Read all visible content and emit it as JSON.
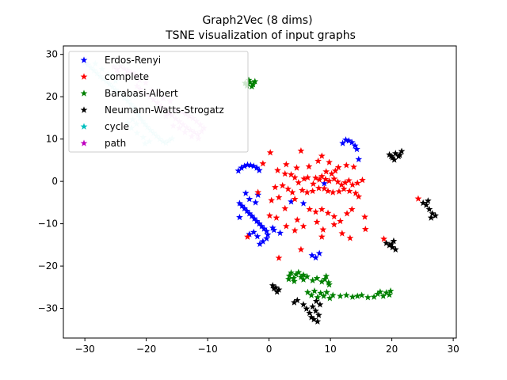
{
  "chart_data": {
    "type": "scatter",
    "title": "Graph2Vec (8 dims)",
    "subtitle": "TSNE visualization of input graphs",
    "xlabel": "",
    "ylabel": "",
    "xlim": [
      -33.5,
      30.5
    ],
    "ylim": [
      -37,
      32
    ],
    "xticks": [
      -30,
      -20,
      -10,
      0,
      10,
      20,
      30
    ],
    "yticks": [
      -30,
      -20,
      -10,
      0,
      10,
      20,
      30
    ],
    "grid": false,
    "legend_position": "upper-left",
    "marker": "star",
    "series": [
      {
        "name": "Erdos-Renyi",
        "color": "#0000ff",
        "points": [
          [
            -5,
            2.5
          ],
          [
            -4.5,
            3.2
          ],
          [
            -4,
            3.6
          ],
          [
            -3.5,
            3.9
          ],
          [
            -3,
            3.8
          ],
          [
            -2.5,
            3.6
          ],
          [
            -2,
            3.2
          ],
          [
            -1.6,
            2.6
          ],
          [
            -4.8,
            -5.2
          ],
          [
            -4.4,
            -5.8
          ],
          [
            -4,
            -6.4
          ],
          [
            -3.6,
            -7
          ],
          [
            -3.2,
            -7.6
          ],
          [
            -2.8,
            -8.2
          ],
          [
            -2.4,
            -8.8
          ],
          [
            -2,
            -9.4
          ],
          [
            -1.6,
            -10
          ],
          [
            -1.2,
            -10.6
          ],
          [
            -0.8,
            -11.2
          ],
          [
            -0.4,
            -11.8
          ],
          [
            -0.2,
            -12.6
          ],
          [
            -0.4,
            -13.5
          ],
          [
            -1,
            -14.2
          ],
          [
            -1.5,
            -14.8
          ],
          [
            -1.9,
            -13
          ],
          [
            -2.5,
            -12
          ],
          [
            -3.2,
            -12.5
          ],
          [
            -4.8,
            -8.5
          ],
          [
            0.6,
            -11
          ],
          [
            0.8,
            -11.5
          ],
          [
            1.8,
            -12.2
          ],
          [
            -3.8,
            -2.8
          ],
          [
            -3.2,
            -4.2
          ],
          [
            -2.2,
            -5
          ],
          [
            -1.8,
            -3.2
          ],
          [
            3.6,
            -4.8
          ],
          [
            5.6,
            -5.2
          ],
          [
            9,
            -0.5
          ],
          [
            7,
            -17.5
          ],
          [
            7.6,
            -18
          ],
          [
            8.2,
            -17
          ],
          [
            12,
            9
          ],
          [
            12.5,
            9.8
          ],
          [
            13,
            9.6
          ],
          [
            13.5,
            9.2
          ],
          [
            14,
            8.4
          ],
          [
            14.3,
            7.6
          ],
          [
            14.6,
            5.2
          ]
        ]
      },
      {
        "name": "complete",
        "color": "#ff0000",
        "points": [
          [
            0.2,
            6.8
          ],
          [
            5.2,
            7.2
          ],
          [
            -1,
            4.2
          ],
          [
            2.8,
            4
          ],
          [
            4.5,
            3.2
          ],
          [
            6.5,
            3.5
          ],
          [
            8,
            4.8
          ],
          [
            9.3,
            2.3
          ],
          [
            10.2,
            1.8
          ],
          [
            10.8,
            2.5
          ],
          [
            11.3,
            3.3
          ],
          [
            12.6,
            3.8
          ],
          [
            13.8,
            3.4
          ],
          [
            8.6,
            6
          ],
          [
            9.8,
            4.5
          ],
          [
            1.4,
            2.6
          ],
          [
            2.6,
            1.8
          ],
          [
            3.6,
            1.6
          ],
          [
            4.2,
            0.9
          ],
          [
            4.8,
            -0.3
          ],
          [
            5.7,
            0.6
          ],
          [
            6.3,
            0.9
          ],
          [
            7.2,
            -0.6
          ],
          [
            7.6,
            0.8
          ],
          [
            8.2,
            0.4
          ],
          [
            8.6,
            1.2
          ],
          [
            9.2,
            0.5
          ],
          [
            9.8,
            0.1
          ],
          [
            10.6,
            0.6
          ],
          [
            11.2,
            -0.1
          ],
          [
            11.8,
            -0.8
          ],
          [
            12.4,
            -0.3
          ],
          [
            13,
            0.2
          ],
          [
            13.6,
            -0.8
          ],
          [
            14.4,
            -0.4
          ],
          [
            15.2,
            0.3
          ],
          [
            -1.8,
            -2.6
          ],
          [
            1,
            -1.4
          ],
          [
            2.2,
            -1
          ],
          [
            3.1,
            -1.8
          ],
          [
            3.8,
            -2.6
          ],
          [
            5.4,
            -2.1
          ],
          [
            6.2,
            -2.6
          ],
          [
            7.1,
            -2.3
          ],
          [
            8.1,
            -1.6
          ],
          [
            9,
            -1.7
          ],
          [
            9.6,
            -2.3
          ],
          [
            10.4,
            -2.6
          ],
          [
            11.4,
            -2.4
          ],
          [
            12.2,
            -1.8
          ],
          [
            13.1,
            -2.3
          ],
          [
            14.1,
            -2.8
          ],
          [
            0.4,
            -4.5
          ],
          [
            1.6,
            -3.8
          ],
          [
            2.6,
            -6.4
          ],
          [
            4.2,
            -4.2
          ],
          [
            6.6,
            -6.6
          ],
          [
            7.6,
            -7.2
          ],
          [
            8.6,
            -6.6
          ],
          [
            9.6,
            -7.5
          ],
          [
            10.6,
            -8.3
          ],
          [
            11.6,
            -9.4
          ],
          [
            12.7,
            -7.6
          ],
          [
            13.5,
            -6.6
          ],
          [
            14.6,
            -3.6
          ],
          [
            15.6,
            -8.4
          ],
          [
            0.1,
            -8.1
          ],
          [
            1.2,
            -8.6
          ],
          [
            4.6,
            -9.1
          ],
          [
            5.6,
            -10.6
          ],
          [
            7.8,
            -9.6
          ],
          [
            8.8,
            -11.4
          ],
          [
            10.6,
            -10.2
          ],
          [
            11.9,
            -12.3
          ],
          [
            13.2,
            -13.4
          ],
          [
            2.8,
            -10.6
          ],
          [
            4.2,
            -11.6
          ],
          [
            8.6,
            -13.1
          ],
          [
            15.7,
            -11.3
          ],
          [
            -3.5,
            -13.1
          ],
          [
            1.6,
            -18.1
          ],
          [
            5.2,
            -16.1
          ],
          [
            24.3,
            -4.1
          ],
          [
            18.7,
            -13.6
          ]
        ]
      },
      {
        "name": "Barabasi-Albert",
        "color": "#008000",
        "points": [
          [
            -3.9,
            23.2
          ],
          [
            -3.6,
            22.6
          ],
          [
            -3.1,
            23.4
          ],
          [
            -2.6,
            22.9
          ],
          [
            -3.3,
            23.9
          ],
          [
            -2.8,
            22.4
          ],
          [
            -2.3,
            23.6
          ],
          [
            3.3,
            -22.3
          ],
          [
            3.6,
            -21.6
          ],
          [
            4,
            -22.9
          ],
          [
            4.4,
            -22
          ],
          [
            4.8,
            -21.5
          ],
          [
            5.2,
            -22.6
          ],
          [
            5.6,
            -22.1
          ],
          [
            3.2,
            -23.1
          ],
          [
            4.1,
            -23.6
          ],
          [
            5.6,
            -23.2
          ],
          [
            6.2,
            -22.5
          ],
          [
            7.1,
            -23.4
          ],
          [
            7.8,
            -22.9
          ],
          [
            8.6,
            -23.7
          ],
          [
            9.1,
            -23.1
          ],
          [
            9.7,
            -23.9
          ],
          [
            9.3,
            -22.4
          ],
          [
            9.8,
            -24.4
          ],
          [
            6.3,
            -26.2
          ],
          [
            6.9,
            -26.9
          ],
          [
            7.4,
            -25.9
          ],
          [
            7.9,
            -27.4
          ],
          [
            8.4,
            -26.4
          ],
          [
            8.9,
            -27.1
          ],
          [
            9.4,
            -26.2
          ],
          [
            9.9,
            -27.6
          ],
          [
            10.4,
            -26.9
          ],
          [
            11.6,
            -27.1
          ],
          [
            12.6,
            -26.9
          ],
          [
            13.6,
            -27.3
          ],
          [
            14.4,
            -27.1
          ],
          [
            15.1,
            -26.9
          ],
          [
            16.1,
            -27.4
          ],
          [
            17.1,
            -27.3
          ],
          [
            17.7,
            -26.6
          ],
          [
            18.1,
            -26.1
          ],
          [
            18.6,
            -27.1
          ],
          [
            19.1,
            -26.3
          ],
          [
            19.6,
            -26.8
          ],
          [
            19.8,
            -25.9
          ]
        ]
      },
      {
        "name": "Neumann-Watts-Strogatz",
        "color": "#000000",
        "points": [
          [
            19.6,
            6.3
          ],
          [
            20.1,
            5.6
          ],
          [
            20.6,
            6.6
          ],
          [
            21.1,
            5.9
          ],
          [
            21.6,
            7.1
          ],
          [
            20.4,
            5.1
          ],
          [
            19.9,
            5.9
          ],
          [
            21.3,
            6.2
          ],
          [
            25.1,
            -5.1
          ],
          [
            25.6,
            -5.6
          ],
          [
            26.1,
            -6.6
          ],
          [
            26.6,
            -7.6
          ],
          [
            27.1,
            -8.1
          ],
          [
            26.4,
            -8.6
          ],
          [
            25.9,
            -4.6
          ],
          [
            19.1,
            -14.6
          ],
          [
            19.6,
            -15.1
          ],
          [
            20.1,
            -15.6
          ],
          [
            20.3,
            -14.1
          ],
          [
            20.6,
            -16.1
          ],
          [
            19.9,
            -14.9
          ],
          [
            0.6,
            -24.6
          ],
          [
            1.1,
            -25.1
          ],
          [
            1.6,
            -25.6
          ],
          [
            1.3,
            -26.1
          ],
          [
            0.8,
            -25.3
          ],
          [
            4.1,
            -28.6
          ],
          [
            4.6,
            -28.1
          ],
          [
            5.6,
            -29.1
          ],
          [
            6.1,
            -30.1
          ],
          [
            6.6,
            -31.1
          ],
          [
            7.1,
            -29.6
          ],
          [
            7.6,
            -30.6
          ],
          [
            8.1,
            -31.6
          ],
          [
            7.3,
            -32.6
          ],
          [
            7.9,
            -33.1
          ],
          [
            6.9,
            -32.1
          ],
          [
            8.3,
            -29.1
          ],
          [
            7.7,
            -28.3
          ]
        ]
      },
      {
        "name": "cycle",
        "color": "#00bfbf",
        "alpha": 0.2,
        "points": [
          [
            -30,
            28
          ],
          [
            -29.5,
            27.5
          ],
          [
            -29,
            26.8
          ],
          [
            -28.5,
            26.2
          ],
          [
            -28,
            25.5
          ],
          [
            -27.5,
            24.8
          ],
          [
            -27,
            24.2
          ],
          [
            -26.5,
            23.6
          ],
          [
            -26,
            23
          ],
          [
            -25.5,
            22.3
          ],
          [
            -25,
            21.6
          ],
          [
            -24.5,
            21
          ],
          [
            -24,
            20.4
          ],
          [
            -23.5,
            19.7
          ],
          [
            -23,
            19
          ],
          [
            -22.5,
            18.2
          ],
          [
            -22,
            17.4
          ],
          [
            -21.6,
            16.6
          ],
          [
            -21.3,
            15.8
          ],
          [
            -21,
            15
          ],
          [
            -20.6,
            14.2
          ],
          [
            -20.2,
            13.5
          ],
          [
            -19.8,
            12.8
          ],
          [
            -19.3,
            12.1
          ],
          [
            -18.8,
            11.4
          ],
          [
            -18.3,
            10.7
          ],
          [
            -17.8,
            10
          ],
          [
            -17.3,
            9.4
          ],
          [
            -16.8,
            9.1
          ],
          [
            -16.3,
            9.6
          ],
          [
            -15.8,
            10.1
          ],
          [
            -19.5,
            9.4
          ],
          [
            -20.5,
            10.4
          ],
          [
            -21.5,
            11.4
          ],
          [
            -22.4,
            12.6
          ],
          [
            -23,
            13.8
          ],
          [
            -22.2,
            14.6
          ],
          [
            -21.6,
            13.6
          ],
          [
            -20.2,
            8.9
          ],
          [
            -28.3,
            27.8
          ],
          [
            -27.2,
            26.5
          ],
          [
            -26.2,
            25.4
          ],
          [
            -25.5,
            24.9
          ],
          [
            -25,
            23.7
          ],
          [
            -22.6,
            20.8
          ],
          [
            -21.7,
            20.1
          ]
        ]
      },
      {
        "name": "path",
        "color": "#bf00bf",
        "alpha": 0.2,
        "points": [
          [
            -25.3,
            27.1
          ],
          [
            -24.8,
            26.5
          ],
          [
            -24.2,
            27.2
          ],
          [
            -23.6,
            26.6
          ],
          [
            -23,
            26.2
          ],
          [
            -22.4,
            25.7
          ],
          [
            -21.8,
            25.4
          ],
          [
            -21.4,
            24.9
          ],
          [
            -24.6,
            25.8
          ],
          [
            -23.2,
            25.4
          ],
          [
            -21.5,
            22.5
          ],
          [
            -21,
            21.8
          ],
          [
            -20.5,
            21.2
          ],
          [
            -20,
            20.6
          ],
          [
            -19.4,
            20
          ],
          [
            -18.8,
            19.3
          ],
          [
            -18.2,
            18.6
          ],
          [
            -17.6,
            17.8
          ],
          [
            -17,
            17
          ],
          [
            -16.4,
            16.2
          ],
          [
            -15.8,
            15.6
          ],
          [
            -15.2,
            14.8
          ],
          [
            -14.6,
            14.1
          ],
          [
            -14,
            13.4
          ],
          [
            -13.4,
            12.7
          ],
          [
            -12.8,
            12.1
          ],
          [
            -12.2,
            11.6
          ],
          [
            -11.6,
            11.1
          ],
          [
            -11,
            11.8
          ],
          [
            -10.6,
            12.6
          ],
          [
            -11.2,
            13.4
          ],
          [
            -11.8,
            14.2
          ],
          [
            -12.4,
            14.9
          ],
          [
            -13,
            15.4
          ],
          [
            -13.6,
            15.9
          ],
          [
            -14.2,
            16.4
          ],
          [
            -15.2,
            16.8
          ],
          [
            -16.2,
            16.1
          ],
          [
            -16.8,
            15.4
          ],
          [
            -15.6,
            13.1
          ],
          [
            -14.6,
            12.6
          ],
          [
            -13.7,
            11.6
          ],
          [
            -12.6,
            10.6
          ],
          [
            -11.5,
            10.1
          ],
          [
            -16.1,
            18.9
          ],
          [
            -17.2,
            19.6
          ],
          [
            -18.1,
            20.9
          ],
          [
            -19.1,
            21.5
          ],
          [
            -20.1,
            23.3
          ],
          [
            -21.1,
            23.9
          ]
        ]
      }
    ]
  }
}
